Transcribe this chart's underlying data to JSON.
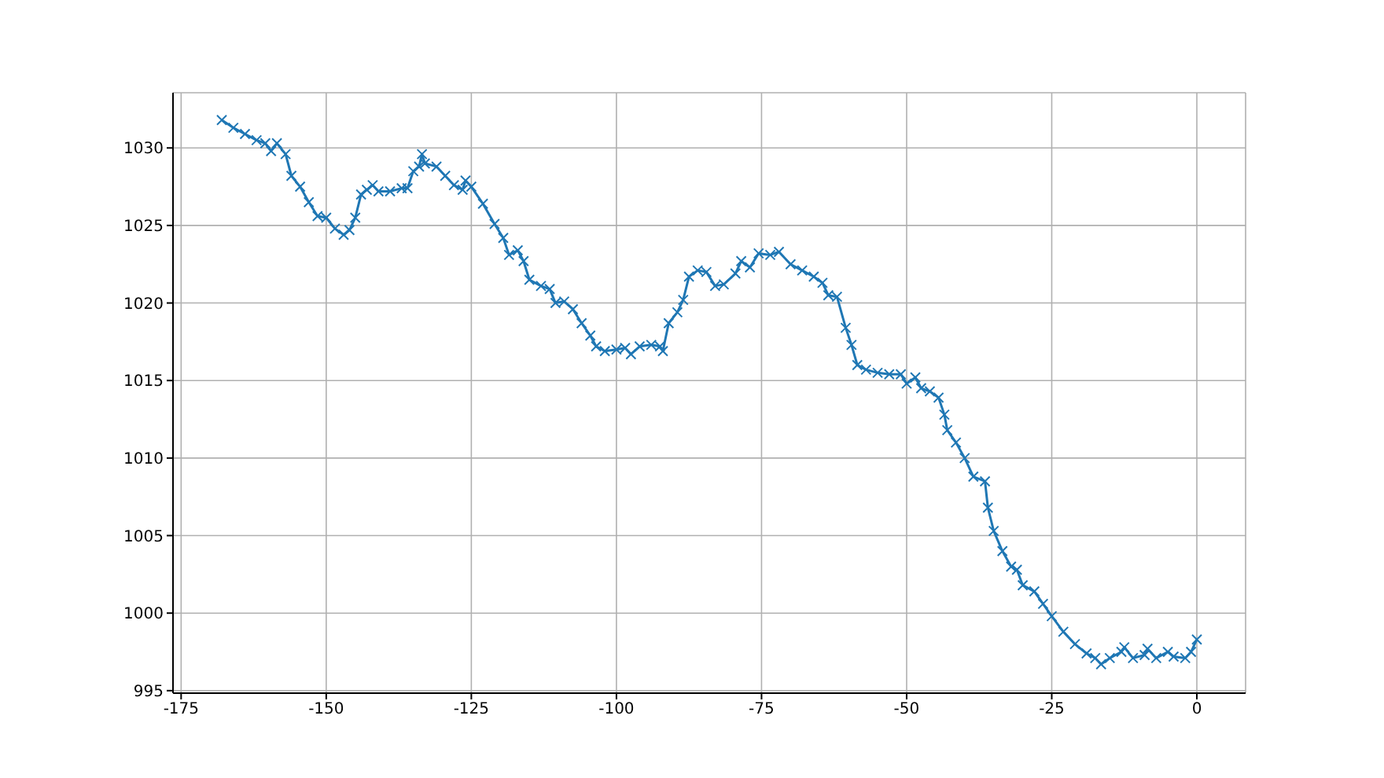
{
  "chart_data": {
    "type": "line",
    "x": [
      -168,
      -166,
      -164,
      -162,
      -160.5,
      -159.5,
      -158.5,
      -157,
      -156,
      -154.5,
      -153,
      -151.5,
      -150,
      -148.5,
      -147,
      -146,
      -145,
      -144,
      -143,
      -142,
      -141,
      -139,
      -137,
      -136,
      -135,
      -134,
      -133.5,
      -133,
      -131,
      -129.5,
      -128,
      -126.5,
      -126,
      -125,
      -123,
      -121,
      -119.5,
      -118.5,
      -117,
      -116,
      -115,
      -113,
      -111.5,
      -110.5,
      -109,
      -107.5,
      -106,
      -104.5,
      -103.5,
      -102,
      -100,
      -98.5,
      -97.5,
      -96,
      -94,
      -92.5,
      -92,
      -91,
      -89.5,
      -88.5,
      -87.5,
      -86,
      -84.5,
      -83,
      -81.5,
      -79.5,
      -78.5,
      -77,
      -75.5,
      -73.5,
      -72,
      -70,
      -68,
      -66,
      -64.5,
      -63.5,
      -62,
      -60.5,
      -59.5,
      -58.5,
      -57,
      -55,
      -53,
      -51,
      -50,
      -48.5,
      -47.5,
      -46,
      -44.5,
      -43.5,
      -43,
      -41.5,
      -40,
      -38.5,
      -36.5,
      -36,
      -35,
      -33.5,
      -32,
      -31,
      -30,
      -28,
      -26.5,
      -25,
      -23,
      -21,
      -19,
      -17.5,
      -16.5,
      -15,
      -13,
      -12.5,
      -11,
      -9,
      -8.5,
      -7,
      -5,
      -4,
      -2,
      -1,
      0
    ],
    "series": [
      {
        "color": "#1f77b4",
        "values": [
          1031.8,
          1031.3,
          1030.9,
          1030.5,
          1030.3,
          1029.8,
          1030.3,
          1029.6,
          1028.2,
          1027.5,
          1026.5,
          1025.6,
          1025.5,
          1024.8,
          1024.4,
          1024.7,
          1025.5,
          1027,
          1027.3,
          1027.6,
          1027.2,
          1027.2,
          1027.4,
          1027.4,
          1028.5,
          1028.8,
          1029.6,
          1029,
          1028.8,
          1028.2,
          1027.6,
          1027.3,
          1027.9,
          1027.5,
          1026.4,
          1025.1,
          1024.2,
          1023.1,
          1023.4,
          1022.7,
          1021.5,
          1021.1,
          1020.9,
          1020,
          1020.1,
          1019.6,
          1018.7,
          1017.9,
          1017.2,
          1016.9,
          1017,
          1017.1,
          1016.7,
          1017.2,
          1017.3,
          1017.2,
          1016.9,
          1018.7,
          1019.4,
          1020.2,
          1021.7,
          1022.1,
          1022,
          1021.1,
          1021.2,
          1021.9,
          1022.7,
          1022.3,
          1023.2,
          1023.1,
          1023.3,
          1022.5,
          1022.1,
          1021.7,
          1021.3,
          1020.5,
          1020.4,
          1018.4,
          1017.3,
          1016,
          1015.7,
          1015.5,
          1015.4,
          1015.4,
          1014.8,
          1015.2,
          1014.5,
          1014.3,
          1013.9,
          1012.8,
          1011.8,
          1011,
          1010,
          1008.8,
          1008.5,
          1006.8,
          1005.3,
          1004,
          1003,
          1002.8,
          1001.8,
          1001.4,
          1000.6,
          999.8,
          998.8,
          998,
          997.4,
          997.1,
          996.7,
          997.1,
          997.5,
          997.8,
          997.1,
          997.3,
          997.7,
          997.1,
          997.5,
          997.2,
          997.1,
          997.5,
          998.3
        ]
      }
    ],
    "xlim": [
      -176.4,
      8.4
    ],
    "xticks": [
      -175,
      -150,
      -125,
      -100,
      -75,
      -50,
      -25,
      0
    ],
    "ylim": [
      994.84,
      1033.56
    ],
    "yticks": [
      995,
      1000,
      1005,
      1010,
      1015,
      1020,
      1025,
      1030
    ],
    "grid": true,
    "marker": "cross",
    "line_style": "solid"
  }
}
